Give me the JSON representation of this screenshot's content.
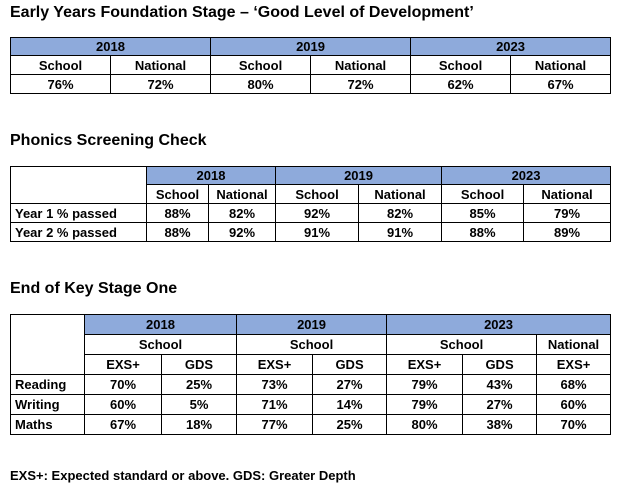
{
  "eyfs": {
    "title": "Early Years Foundation Stage – ‘Good Level of Development’",
    "years": [
      "2018",
      "2019",
      "2023"
    ],
    "subheaders": [
      "School",
      "National",
      "School",
      "National",
      "School",
      "National"
    ],
    "values": [
      "76%",
      "72%",
      "80%",
      "72%",
      "62%",
      "67%"
    ]
  },
  "phonics": {
    "title": "Phonics Screening Check",
    "years": [
      "2018",
      "2019",
      "2023"
    ],
    "subheaders": [
      "School",
      "National",
      "School",
      "National",
      "School",
      "National"
    ],
    "rows": [
      {
        "label": "Year 1 % passed",
        "values": [
          "88%",
          "82%",
          "92%",
          "82%",
          "85%",
          "79%"
        ]
      },
      {
        "label": "Year 2 % passed",
        "values": [
          "88%",
          "92%",
          "91%",
          "91%",
          "88%",
          "89%"
        ]
      }
    ]
  },
  "ks1": {
    "title": "End of Key Stage One",
    "years": [
      "2018",
      "2019",
      "2023"
    ],
    "groups": [
      "School",
      "School",
      "School",
      "National"
    ],
    "measures": [
      "EXS+",
      "GDS",
      "EXS+",
      "GDS",
      "EXS+",
      "GDS",
      "EXS+"
    ],
    "rows": [
      {
        "label": "Reading",
        "values": [
          "70%",
          "25%",
          "73%",
          "27%",
          "79%",
          "43%",
          "68%"
        ]
      },
      {
        "label": "Writing",
        "values": [
          "60%",
          "5%",
          "71%",
          "14%",
          "79%",
          "27%",
          "60%"
        ]
      },
      {
        "label": "Maths",
        "values": [
          "67%",
          "18%",
          "77%",
          "25%",
          "80%",
          "38%",
          "70%"
        ]
      }
    ]
  },
  "footnote": "EXS+: Expected standard or above. GDS: Greater Depth"
}
